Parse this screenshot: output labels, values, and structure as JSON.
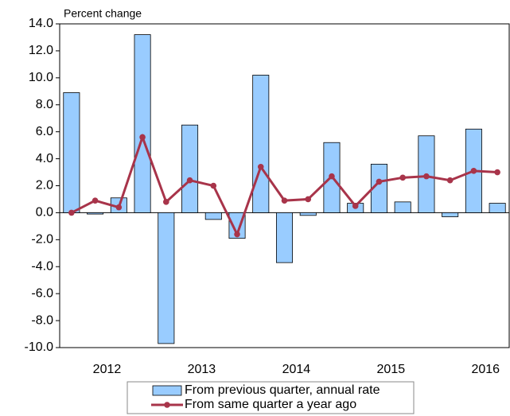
{
  "chart_data": {
    "type": "bar_line",
    "y_label": "Percent change",
    "categories": [
      null,
      "2012",
      null,
      null,
      null,
      "2013",
      null,
      null,
      null,
      "2014",
      null,
      null,
      null,
      "2015",
      null,
      null,
      null,
      "2016",
      null
    ],
    "series": [
      {
        "name": "From previous quarter, annual rate",
        "type": "bar",
        "color": "#99ccff",
        "values": [
          8.9,
          -0.1,
          1.1,
          13.2,
          -9.7,
          6.5,
          -0.5,
          -1.9,
          10.2,
          -3.7,
          -0.2,
          5.2,
          0.7,
          3.6,
          0.8,
          5.7,
          -0.3,
          6.2,
          0.7
        ]
      },
      {
        "name": "From same quarter a year ago",
        "type": "line",
        "color": "#a8344a",
        "values": [
          0.0,
          0.9,
          0.4,
          5.6,
          0.8,
          2.4,
          2.0,
          -1.6,
          3.4,
          0.9,
          1.0,
          2.7,
          0.5,
          2.3,
          2.6,
          2.7,
          2.4,
          3.1,
          3.0
        ]
      }
    ],
    "ylim": [
      -10,
      14
    ],
    "yticks": [
      {
        "value": -10,
        "label": "-10.0"
      },
      {
        "value": -8,
        "label": "-8.0"
      },
      {
        "value": -6,
        "label": "-6.0"
      },
      {
        "value": -4,
        "label": "-4.0"
      },
      {
        "value": -2,
        "label": "-2.0"
      },
      {
        "value": 0,
        "label": "0.0"
      },
      {
        "value": 2,
        "label": "2.0"
      },
      {
        "value": 4,
        "label": "4.0"
      },
      {
        "value": 6,
        "label": "6.0"
      },
      {
        "value": 8,
        "label": "8.0"
      },
      {
        "value": 10,
        "label": "10.0"
      },
      {
        "value": 12,
        "label": "12.0"
      },
      {
        "value": 14,
        "label": "14.0"
      }
    ],
    "legend": "bottom"
  }
}
